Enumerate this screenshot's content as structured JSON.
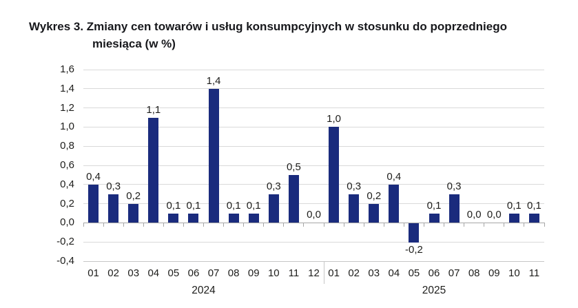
{
  "title": {
    "line1": "Wykres 3. Zmiany cen towarów i usług konsumpcyjnych w stosunku do poprzedniego",
    "line2": "miesiąca (w %)"
  },
  "chart_data": {
    "type": "bar",
    "title": "Wykres 3. Zmiany cen towarów i usług konsumpcyjnych w stosunku do poprzedniego miesiąca (w %)",
    "xlabel": "",
    "ylabel": "",
    "ylim": [
      -0.4,
      1.6
    ],
    "grid": true,
    "legend": "none",
    "colors": {
      "bar": "#1a2b7d",
      "gridline": "#d9d9d9",
      "bottom_gridline": "#c6c6c6",
      "axis": "#a6a6a6",
      "text": "#1d1d1b"
    },
    "y_ticks": [
      {
        "v": 1.6,
        "label": "1,6"
      },
      {
        "v": 1.4,
        "label": "1,4"
      },
      {
        "v": 1.2,
        "label": "1,2"
      },
      {
        "v": 1.0,
        "label": "1,0"
      },
      {
        "v": 0.8,
        "label": "0,8"
      },
      {
        "v": 0.6,
        "label": "0,6"
      },
      {
        "v": 0.4,
        "label": "0,4"
      },
      {
        "v": 0.2,
        "label": "0,2"
      },
      {
        "v": 0.0,
        "label": "0,0"
      },
      {
        "v": -0.2,
        "label": "-0,2"
      },
      {
        "v": -0.4,
        "label": "-0,4"
      }
    ],
    "groups": [
      {
        "year": "2024",
        "categories": [
          "01",
          "02",
          "03",
          "04",
          "05",
          "06",
          "07",
          "08",
          "09",
          "10",
          "11",
          "12"
        ],
        "values": [
          0.4,
          0.3,
          0.2,
          1.1,
          0.1,
          0.1,
          1.4,
          0.1,
          0.1,
          0.3,
          0.5,
          0.0
        ],
        "labels": [
          "0,4",
          "0,3",
          "0,2",
          "1,1",
          "0,1",
          "0,1",
          "1,4",
          "0,1",
          "0,1",
          "0,3",
          "0,5",
          "0,0"
        ]
      },
      {
        "year": "2025",
        "categories": [
          "01",
          "02",
          "03",
          "04",
          "05",
          "06",
          "07",
          "08",
          "09",
          "10",
          "11"
        ],
        "values": [
          1.0,
          0.3,
          0.2,
          0.4,
          -0.2,
          0.1,
          0.3,
          0.0,
          0.0,
          0.1,
          0.1
        ],
        "labels": [
          "1,0",
          "0,3",
          "0,2",
          "0,4",
          "-0,2",
          "0,1",
          "0,3",
          "0,0",
          "0,0",
          "0,1",
          "0,1"
        ]
      }
    ]
  }
}
